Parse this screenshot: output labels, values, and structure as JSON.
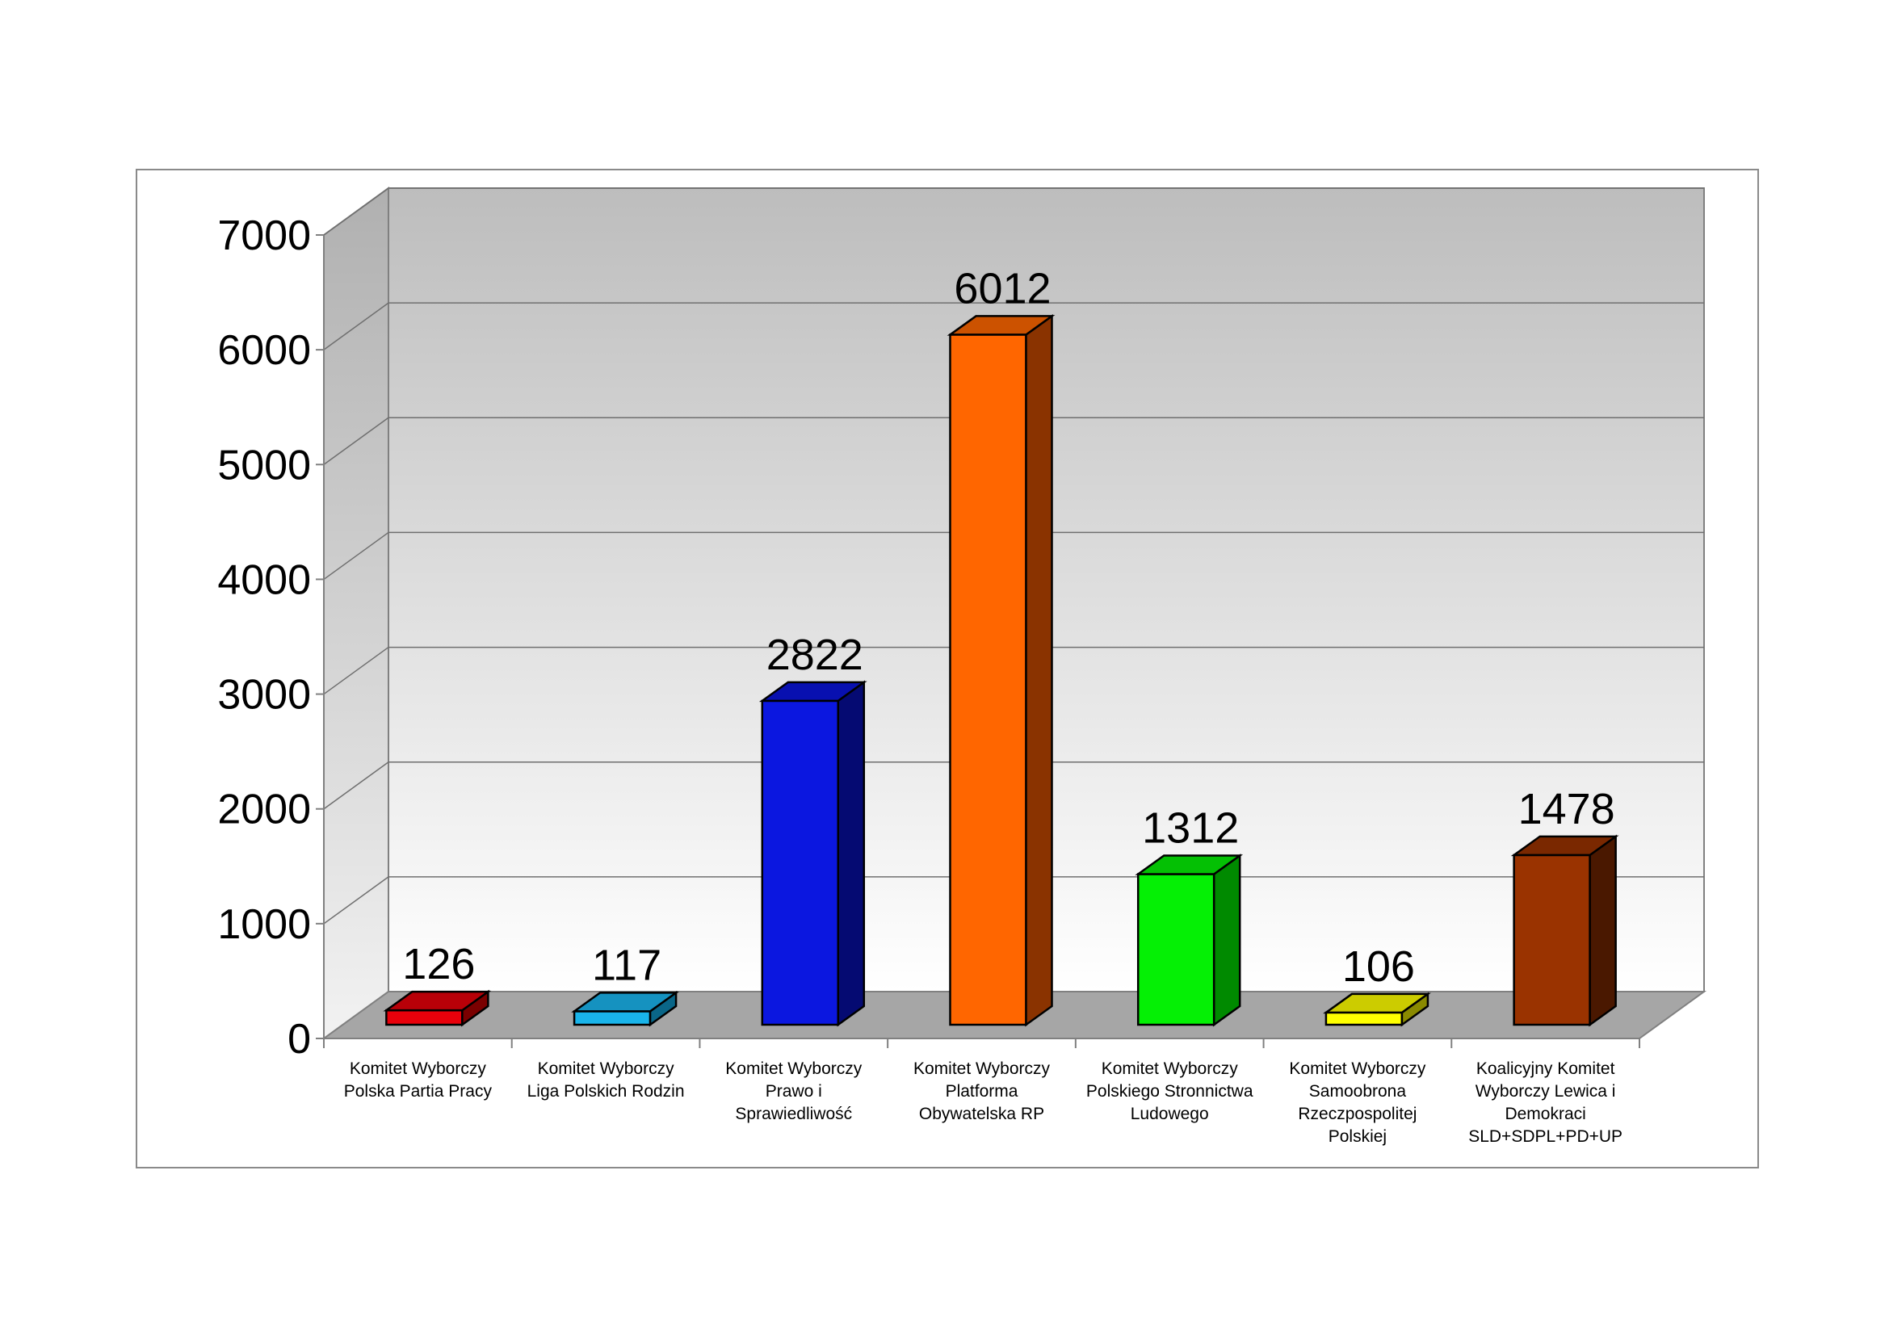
{
  "chart_data": {
    "type": "bar",
    "title": "",
    "xlabel": "",
    "ylabel": "",
    "ylim": [
      0,
      7000
    ],
    "yticks": [
      "0",
      "1000",
      "2000",
      "3000",
      "4000",
      "5000",
      "6000",
      "7000"
    ],
    "grid": true,
    "legend": "none",
    "three_d": true,
    "categories": [
      [
        "Komitet Wyborczy",
        "Polska Partia Pracy"
      ],
      [
        "Komitet Wyborczy",
        "Liga Polskich Rodzin"
      ],
      [
        "Komitet Wyborczy",
        "Prawo i",
        "Sprawiedliwość"
      ],
      [
        "Komitet Wyborczy",
        "Platforma",
        "Obywatelska RP"
      ],
      [
        "Komitet Wyborczy",
        "Polskiego Stronnictwa",
        "Ludowego"
      ],
      [
        "Komitet Wyborczy",
        "Samoobrona",
        "Rzeczpospolitej",
        "Polskiej"
      ],
      [
        "Koalicyjny Komitet",
        "Wyborczy Lewica i",
        "Demokraci",
        "SLD+SDPL+PD+UP"
      ]
    ],
    "values": [
      126,
      117,
      2822,
      6012,
      1312,
      106,
      1478
    ],
    "data_labels": [
      "126",
      "117",
      "2822",
      "6012",
      "1312",
      "106",
      "1478"
    ],
    "colors": [
      {
        "front": "#e8000b",
        "side": "#7a0000",
        "top": "#b80008"
      },
      {
        "front": "#19b4ea",
        "side": "#0a6688",
        "top": "#1592c0"
      },
      {
        "front": "#0b17e0",
        "side": "#050a72",
        "top": "#0810b0"
      },
      {
        "front": "#ff6600",
        "side": "#8a3300",
        "top": "#cc5200"
      },
      {
        "front": "#05f005",
        "side": "#008a00",
        "top": "#04c004"
      },
      {
        "front": "#ffff00",
        "side": "#8a8a00",
        "top": "#cccc00"
      },
      {
        "front": "#9a3300",
        "side": "#4a1800",
        "top": "#7a2800"
      }
    ]
  }
}
